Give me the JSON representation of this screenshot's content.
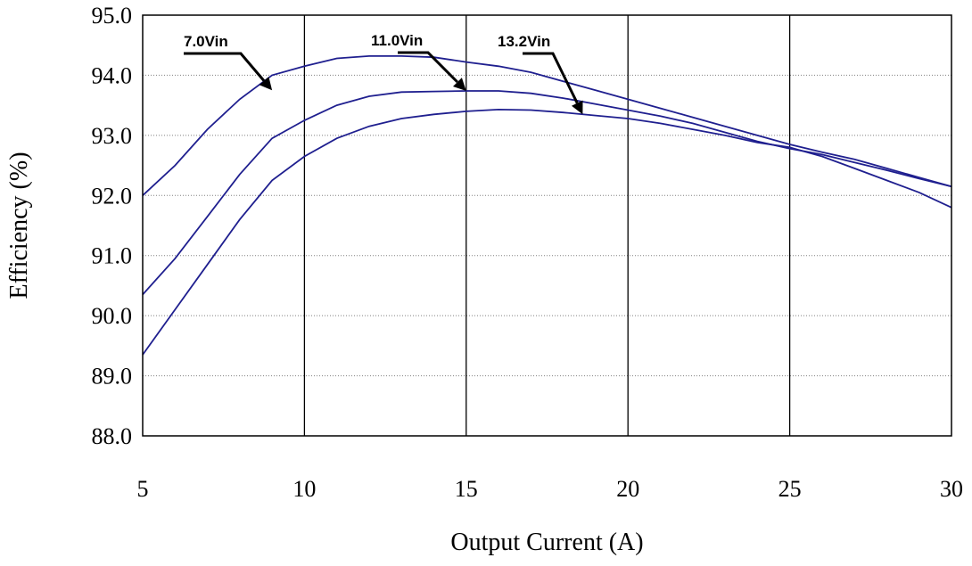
{
  "chart_data": {
    "type": "line",
    "title": "",
    "xlabel": "Output Current (A)",
    "ylabel": "Efficiency (%)",
    "xlim": [
      5,
      30
    ],
    "ylim": [
      88.0,
      95.0
    ],
    "x_ticks": [
      5,
      10,
      15,
      20,
      25,
      30
    ],
    "x_tick_labels": [
      "5",
      "10",
      "15",
      "20",
      "25",
      "30"
    ],
    "y_ticks": [
      88,
      89,
      90,
      91,
      92,
      93,
      94,
      95
    ],
    "y_tick_labels": [
      "88.0",
      "89.0",
      "90.0",
      "91.0",
      "92.0",
      "93.0",
      "94.0",
      "95.0"
    ],
    "grid": {
      "horizontal": "dotted",
      "vertical": "solid"
    },
    "legend": "none",
    "line_color": "#1f1f8f",
    "series": [
      {
        "x": [
          5,
          6,
          7,
          8,
          9,
          10,
          11,
          12,
          13,
          14,
          15,
          16,
          17,
          18,
          19,
          20,
          21,
          22,
          23,
          24,
          25,
          26,
          27,
          28,
          29,
          30
        ],
        "values": [
          92.0,
          92.5,
          93.1,
          93.6,
          94.0,
          94.15,
          94.28,
          94.32,
          94.32,
          94.3,
          94.22,
          94.15,
          94.05,
          93.9,
          93.75,
          93.6,
          93.45,
          93.3,
          93.15,
          93.0,
          92.85,
          92.72,
          92.6,
          92.45,
          92.3,
          92.15
        ]
      },
      {
        "x": [
          5,
          6,
          7,
          8,
          9,
          10,
          11,
          12,
          13,
          14,
          15,
          16,
          17,
          18,
          19,
          20,
          21,
          22,
          23,
          24,
          25,
          26,
          27,
          28,
          29,
          30
        ],
        "values": [
          90.35,
          90.95,
          91.65,
          92.35,
          92.95,
          93.25,
          93.5,
          93.65,
          93.72,
          93.73,
          93.74,
          93.74,
          93.7,
          93.62,
          93.52,
          93.42,
          93.32,
          93.2,
          93.05,
          92.9,
          92.78,
          92.68,
          92.55,
          92.42,
          92.28,
          92.15
        ]
      },
      {
        "x": [
          5,
          6,
          7,
          8,
          9,
          10,
          11,
          12,
          13,
          14,
          15,
          16,
          17,
          18,
          19,
          20,
          21,
          22,
          23,
          24,
          25,
          26,
          27,
          28,
          29,
          30
        ],
        "values": [
          89.35,
          90.1,
          90.85,
          91.6,
          92.25,
          92.65,
          92.95,
          93.15,
          93.28,
          93.35,
          93.4,
          93.43,
          93.42,
          93.38,
          93.33,
          93.28,
          93.2,
          93.1,
          93.0,
          92.88,
          92.8,
          92.65,
          92.45,
          92.25,
          92.05,
          91.8
        ]
      }
    ],
    "annotations": [
      {
        "text": "7.0Vin",
        "series": 0,
        "target_x": 9,
        "target_y": 93.75
      },
      {
        "text": "11.0Vin",
        "series": 1,
        "target_x": 15,
        "target_y": 93.74
      },
      {
        "text": "13.2Vin",
        "series": 2,
        "target_x": 18.6,
        "target_y": 93.35
      }
    ]
  }
}
